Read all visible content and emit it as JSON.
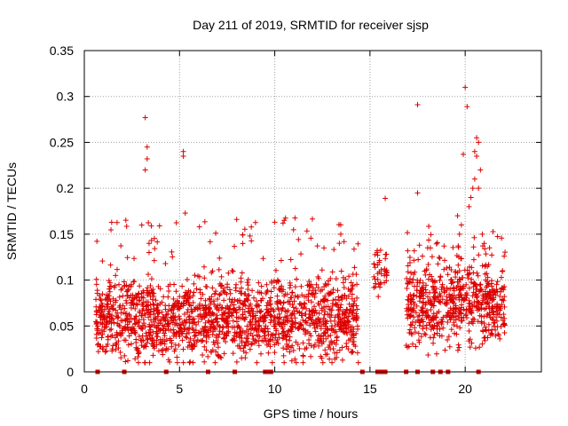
{
  "chart_data": {
    "type": "scatter",
    "title": "Day 211 of 2019, SRMTID for receiver sjsp",
    "xlabel": "GPS time / hours",
    "ylabel": "SRMTID / TECUs",
    "xlim": [
      0,
      24
    ],
    "ylim": [
      0,
      0.35
    ],
    "xticks": [
      0,
      5,
      10,
      15,
      20
    ],
    "xtick_labels": [
      "0",
      "5",
      "10",
      "15",
      "20"
    ],
    "yticks": [
      0,
      0.05,
      0.1,
      0.15,
      0.2,
      0.25,
      0.3,
      0.35
    ],
    "ytick_labels": [
      "0",
      "0.05",
      "0.1",
      "0.15",
      "0.2",
      "0.25",
      "0.3",
      "0.35"
    ],
    "grid": true,
    "series": [
      {
        "name": "SRMTID",
        "marker": "plus",
        "color": "#dd0000",
        "x": [
          3.2,
          3.3,
          3.3,
          3.2,
          3.4,
          3.4,
          5.2,
          5.2,
          5.3,
          8.0,
          10.0,
          15.8,
          17.5,
          17.5,
          20.0,
          20.1,
          19.9,
          20.6,
          20.7,
          20.6,
          20.4,
          20.8,
          20.3,
          20.5,
          19.7,
          20.9,
          19.8,
          20.2,
          21.0,
          19.6,
          20.5,
          20.7
        ],
        "y": [
          0.277,
          0.245,
          0.232,
          0.22,
          0.14,
          0.13,
          0.24,
          0.235,
          0.173,
          0.166,
          0.163,
          0.189,
          0.291,
          0.195,
          0.31,
          0.289,
          0.237,
          0.255,
          0.25,
          0.235,
          0.2,
          0.22,
          0.19,
          0.21,
          0.15,
          0.15,
          0.16,
          0.18,
          0.14,
          0.17,
          0.24,
          0.2
        ]
      },
      {
        "name": "zero markers",
        "marker": "square",
        "color": "#dd0000",
        "x": [
          0.7,
          2.1,
          4.3,
          6.5,
          7.9,
          9.5,
          9.6,
          9.7,
          9.8,
          14.6,
          15.4,
          15.6,
          15.8,
          16.9,
          17.5,
          18.3,
          18.7,
          19.1,
          20.7
        ],
        "y": [
          0,
          0,
          0,
          0,
          0,
          0,
          0,
          0,
          0,
          0,
          0,
          0,
          0,
          0,
          0,
          0,
          0,
          0,
          0
        ]
      }
    ],
    "point_cloud_segments": [
      {
        "x_range": [
          0.6,
          14.4
        ],
        "y_center": 0.058,
        "y_spread": 0.03,
        "outlier_max": 0.17,
        "count": 1700
      },
      {
        "x_range": [
          15.2,
          15.9
        ],
        "y_center": 0.11,
        "y_spread": 0.02,
        "outlier_max": 0.14,
        "count": 40
      },
      {
        "x_range": [
          16.9,
          22.1
        ],
        "y_center": 0.075,
        "y_spread": 0.032,
        "outlier_max": 0.16,
        "count": 650
      }
    ]
  }
}
